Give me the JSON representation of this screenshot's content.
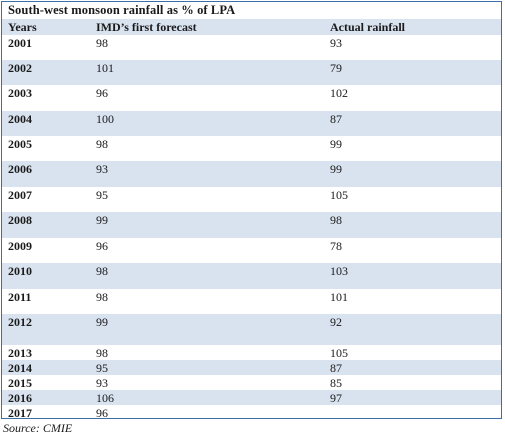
{
  "table": {
    "title": "South-west monsoon rainfall as % of LPA",
    "headers": [
      "Years",
      "IMD’s first forecast",
      "Actual rainfall"
    ],
    "rows": [
      {
        "year": "2001",
        "forecast": "98",
        "actual": "93"
      },
      {
        "year": "2002",
        "forecast": "101",
        "actual": "79"
      },
      {
        "year": "2003",
        "forecast": "96",
        "actual": "102"
      },
      {
        "year": "2004",
        "forecast": "100",
        "actual": "87"
      },
      {
        "year": "2005",
        "forecast": "98",
        "actual": "99"
      },
      {
        "year": "2006",
        "forecast": "93",
        "actual": "99"
      },
      {
        "year": "2007",
        "forecast": "95",
        "actual": "105"
      },
      {
        "year": "2008",
        "forecast": "99",
        "actual": "98"
      },
      {
        "year": "2009",
        "forecast": "96",
        "actual": "78"
      },
      {
        "year": "2010",
        "forecast": "98",
        "actual": "103"
      },
      {
        "year": "2011",
        "forecast": "98",
        "actual": "101"
      },
      {
        "year": "2012",
        "forecast": "99",
        "actual": "92"
      },
      {
        "year": "2013",
        "forecast": "98",
        "actual": "105"
      },
      {
        "year": "2014",
        "forecast": "95",
        "actual": "87"
      },
      {
        "year": "2015",
        "forecast": "93",
        "actual": "85"
      },
      {
        "year": "2016",
        "forecast": "106",
        "actual": "97"
      },
      {
        "year": "2017",
        "forecast": "96",
        "actual": ""
      }
    ],
    "source": "Source: CMIE"
  },
  "colors": {
    "shade": "#d9e3f0",
    "border": "#3b6fa8"
  },
  "chart_data": {
    "type": "table",
    "title": "South-west monsoon rainfall as % of LPA",
    "columns": [
      "Years",
      "IMD’s first forecast",
      "Actual rainfall"
    ],
    "x": [
      "2001",
      "2002",
      "2003",
      "2004",
      "2005",
      "2006",
      "2007",
      "2008",
      "2009",
      "2010",
      "2011",
      "2012",
      "2013",
      "2014",
      "2015",
      "2016",
      "2017"
    ],
    "series": [
      {
        "name": "IMD’s first forecast",
        "values": [
          98,
          101,
          96,
          100,
          98,
          93,
          95,
          99,
          96,
          98,
          98,
          99,
          98,
          95,
          93,
          106,
          96
        ]
      },
      {
        "name": "Actual rainfall",
        "values": [
          93,
          79,
          102,
          87,
          99,
          99,
          105,
          98,
          78,
          103,
          101,
          92,
          105,
          87,
          85,
          97,
          null
        ]
      }
    ]
  }
}
